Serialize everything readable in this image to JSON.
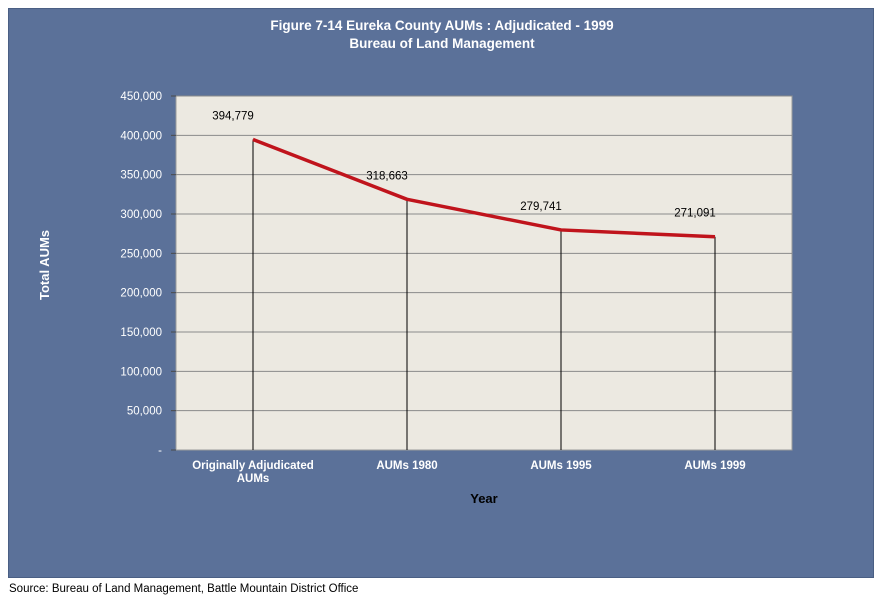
{
  "source_note": "Source: Bureau of Land Management, Battle Mountain District Office",
  "colors": {
    "frame": "#5b7199",
    "plot_area": "#ece9e1",
    "line": "#c0141c",
    "drop_lines": "#000000",
    "text_on_frame": "#ffffff"
  },
  "chart_data": {
    "type": "line",
    "title": "Figure 7-14 Eureka County AUMs :  Adjudicated - 1999",
    "subtitle": "Bureau of Land Management",
    "xlabel": "Year",
    "ylabel": "Total AUMs",
    "categories": [
      "Originally Adjudicated AUMs",
      "AUMs 1980",
      "AUMs 1995",
      "AUMs 1999"
    ],
    "category_label_lines": [
      [
        "Originally Adjudicated",
        "AUMs"
      ],
      [
        "AUMs 1980"
      ],
      [
        "AUMs 1995"
      ],
      [
        "AUMs 1999"
      ]
    ],
    "series": [
      {
        "values": [
          394779,
          318663,
          279741,
          271091
        ]
      }
    ],
    "data_labels": [
      "394,779",
      "318,663",
      "279,741",
      "271,091"
    ],
    "ylim": [
      0,
      450000
    ],
    "y_ticks": [
      0,
      50000,
      100000,
      150000,
      200000,
      250000,
      300000,
      350000,
      400000,
      450000
    ],
    "y_tick_labels": [
      "-",
      "50,000",
      "100,000",
      "150,000",
      "200,000",
      "250,000",
      "300,000",
      "350,000",
      "400,000",
      "450,000"
    ],
    "grid": true,
    "drop_lines": true,
    "legend": "none"
  }
}
